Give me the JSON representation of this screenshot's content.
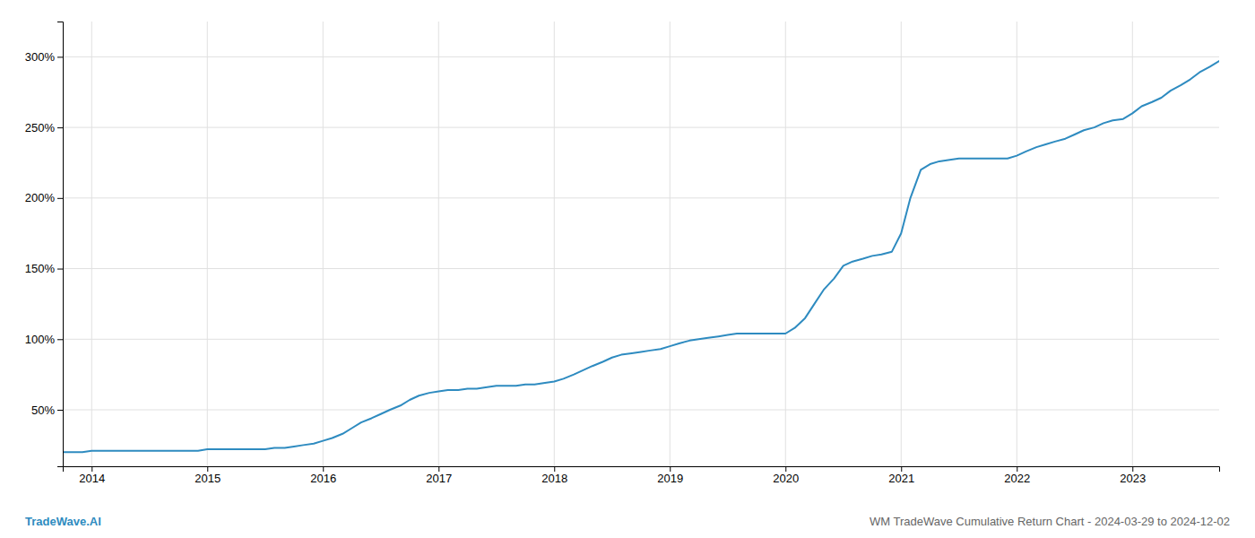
{
  "chart_data": {
    "type": "line",
    "x": [
      2013.75,
      2013.83,
      2013.92,
      2014.0,
      2014.08,
      2014.17,
      2014.25,
      2014.33,
      2014.42,
      2014.5,
      2014.58,
      2014.67,
      2014.75,
      2014.83,
      2014.92,
      2015.0,
      2015.08,
      2015.17,
      2015.25,
      2015.33,
      2015.42,
      2015.5,
      2015.58,
      2015.67,
      2015.75,
      2015.83,
      2015.92,
      2016.0,
      2016.08,
      2016.17,
      2016.25,
      2016.33,
      2016.42,
      2016.5,
      2016.58,
      2016.67,
      2016.75,
      2016.83,
      2016.92,
      2017.0,
      2017.08,
      2017.17,
      2017.25,
      2017.33,
      2017.42,
      2017.5,
      2017.58,
      2017.67,
      2017.75,
      2017.83,
      2017.92,
      2018.0,
      2018.08,
      2018.17,
      2018.25,
      2018.33,
      2018.42,
      2018.5,
      2018.58,
      2018.67,
      2018.75,
      2018.83,
      2018.92,
      2019.0,
      2019.08,
      2019.17,
      2019.25,
      2019.33,
      2019.42,
      2019.5,
      2019.58,
      2019.67,
      2019.75,
      2019.83,
      2019.92,
      2020.0,
      2020.08,
      2020.17,
      2020.25,
      2020.33,
      2020.42,
      2020.5,
      2020.58,
      2020.67,
      2020.75,
      2020.83,
      2020.92,
      2021.0,
      2021.08,
      2021.17,
      2021.25,
      2021.33,
      2021.42,
      2021.5,
      2021.58,
      2021.67,
      2021.75,
      2021.83,
      2021.92,
      2022.0,
      2022.08,
      2022.17,
      2022.25,
      2022.33,
      2022.42,
      2022.5,
      2022.58,
      2022.67,
      2022.75,
      2022.83,
      2022.92,
      2023.0,
      2023.08,
      2023.17,
      2023.25,
      2023.33,
      2023.42,
      2023.5,
      2023.58,
      2023.67,
      2023.75
    ],
    "values": [
      20,
      20,
      20,
      21,
      21,
      21,
      21,
      21,
      21,
      21,
      21,
      21,
      21,
      21,
      21,
      22,
      22,
      22,
      22,
      22,
      22,
      22,
      23,
      23,
      24,
      25,
      26,
      28,
      30,
      33,
      37,
      41,
      44,
      47,
      50,
      53,
      57,
      60,
      62,
      63,
      64,
      64,
      65,
      65,
      66,
      67,
      67,
      67,
      68,
      68,
      69,
      70,
      72,
      75,
      78,
      81,
      84,
      87,
      89,
      90,
      91,
      92,
      93,
      95,
      97,
      99,
      100,
      101,
      102,
      103,
      104,
      104,
      104,
      104,
      104,
      104,
      108,
      115,
      125,
      135,
      143,
      152,
      155,
      157,
      159,
      160,
      162,
      175,
      200,
      220,
      224,
      226,
      227,
      228,
      228,
      228,
      228,
      228,
      228,
      230,
      233,
      236,
      238,
      240,
      242,
      245,
      248,
      250,
      253,
      255,
      256,
      260,
      265,
      268,
      271,
      276,
      280,
      284,
      289,
      293,
      297
    ],
    "color": "#2e8bc0",
    "xlim": [
      2013.75,
      2023.75
    ],
    "ylim": [
      10,
      325
    ],
    "xticks": [
      2014,
      2015,
      2016,
      2017,
      2018,
      2019,
      2020,
      2021,
      2022,
      2023
    ],
    "yticks": [
      {
        "value": 50,
        "label": "50%"
      },
      {
        "value": 100,
        "label": "100%"
      },
      {
        "value": 150,
        "label": "150%"
      },
      {
        "value": 200,
        "label": "200%"
      },
      {
        "value": 250,
        "label": "250%"
      },
      {
        "value": 300,
        "label": "300%"
      }
    ],
    "grid": true,
    "annotations": [
      "TradeWave.AI",
      "WM TradeWave Cumulative Return Chart - 2024-03-29 to 2024-12-02"
    ]
  }
}
